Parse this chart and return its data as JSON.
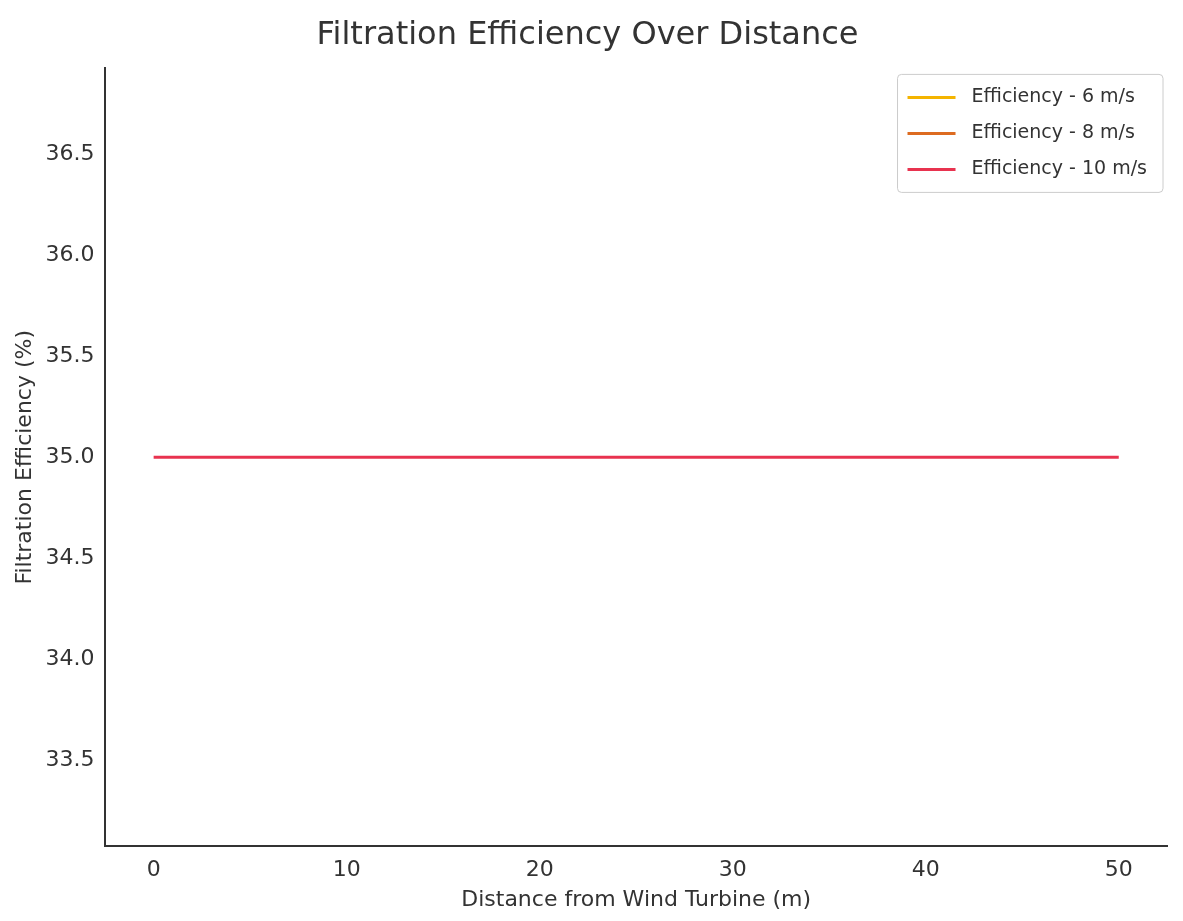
{
  "chart_data": {
    "type": "line",
    "title": "Filtration Efficiency Over Distance",
    "xlabel": "Distance from Wind Turbine (m)",
    "ylabel": "Filtration Efficiency (%)",
    "x": [
      0,
      50
    ],
    "series": [
      {
        "name": "Efficiency - 6 m/s",
        "color": "#f4b400",
        "values": [
          null,
          null
        ]
      },
      {
        "name": "Efficiency - 8 m/s",
        "color": "#dd6b20",
        "values": [
          null,
          null
        ]
      },
      {
        "name": "Efficiency - 10 m/s",
        "color": "#e8334f",
        "values": [
          35,
          35
        ]
      }
    ],
    "xlim": [
      -2.5,
      52.5
    ],
    "xticks": [
      0,
      10,
      20,
      30,
      40,
      50
    ],
    "ylim": [
      33.075,
      36.925
    ],
    "yticks": [
      33.5,
      {
        "value": 34,
        "label": "34.0"
      },
      34.5,
      {
        "value": 35,
        "label": "35.0"
      },
      35.5,
      {
        "value": 36,
        "label": "36.0"
      },
      36.5
    ],
    "grid": false,
    "legend": "top right",
    "marker": "none",
    "line_style": "solid"
  }
}
